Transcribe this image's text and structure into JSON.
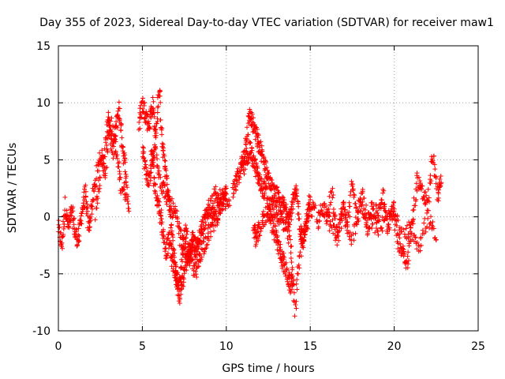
{
  "chart_data": {
    "type": "scatter",
    "title": "Day 355 of 2023, Sidereal Day-to-day VTEC variation (SDTVAR) for receiver maw1",
    "xlabel": "GPS time / hours",
    "ylabel": "SDTVAR / TECUs",
    "xlim": [
      0,
      25
    ],
    "ylim": [
      -10,
      15
    ],
    "x_ticks": [
      0,
      5,
      10,
      15,
      20,
      25
    ],
    "y_ticks": [
      -10,
      -5,
      0,
      5,
      10,
      15
    ],
    "x_tick_labels": [
      "0",
      "5",
      "10",
      "15",
      "20",
      "25"
    ],
    "y_tick_labels": [
      "-10",
      "-5",
      "0",
      "5",
      "10",
      "15"
    ],
    "grid": true,
    "marker": "+",
    "series": [
      {
        "name": "SDTVAR",
        "color": "#ff0000",
        "tracks": [
          {
            "x": [
              0.0,
              0.2,
              0.4,
              0.6,
              0.8,
              1.0,
              1.2,
              1.4,
              1.6,
              1.8,
              2.0,
              2.2,
              2.5,
              2.8,
              3.1,
              3.4,
              3.7,
              4.0
            ],
            "y": [
              -1.0,
              -2.5,
              1.0,
              -1.0,
              0.5,
              -1.5,
              -2.0,
              0.5,
              2.0,
              -1.0,
              1.0,
              3.0,
              5.5,
              4.0,
              8.5,
              6.0,
              3.0,
              2.0
            ]
          },
          {
            "x": [
              2.2,
              2.5,
              2.8,
              3.0,
              3.2,
              3.4,
              3.6,
              3.8,
              4.0,
              4.2
            ],
            "y": [
              0.5,
              4.0,
              6.0,
              9.0,
              5.5,
              7.5,
              9.5,
              6.5,
              4.0,
              0.5
            ]
          },
          {
            "x": [
              4.8,
              5.0,
              5.2,
              5.4,
              5.6,
              5.8,
              6.0,
              6.2,
              6.4,
              6.6,
              6.8,
              7.0,
              7.2,
              7.4,
              7.6,
              7.8,
              8.0,
              8.2,
              8.5,
              8.8,
              9.1,
              9.4,
              9.7,
              10.0
            ],
            "y": [
              8.0,
              10.0,
              9.0,
              8.0,
              10.0,
              7.0,
              11.0,
              6.0,
              4.0,
              1.0,
              -2.0,
              -5.0,
              -7.0,
              -5.5,
              -4.0,
              -3.0,
              -2.0,
              -3.0,
              -1.0,
              0.0,
              1.0,
              2.0,
              1.5,
              2.5
            ]
          },
          {
            "x": [
              5.0,
              5.2,
              5.4,
              5.6,
              5.8,
              6.0,
              6.2,
              6.4,
              6.6,
              6.8,
              7.0,
              7.2,
              7.4,
              7.6,
              7.8,
              8.0,
              8.3,
              8.6,
              9.0,
              9.4,
              9.8,
              10.2
            ],
            "y": [
              6.0,
              4.0,
              3.0,
              5.0,
              2.0,
              1.0,
              -1.0,
              -3.0,
              -2.0,
              -4.0,
              -5.0,
              -6.0,
              -3.0,
              -1.0,
              -4.0,
              -2.0,
              -3.0,
              -1.0,
              1.0,
              0.0,
              1.5,
              1.0
            ]
          },
          {
            "x": [
              5.5,
              5.8,
              6.1,
              6.4,
              6.7,
              7.0,
              7.3,
              7.6,
              7.9,
              8.2,
              8.5,
              8.8,
              9.1,
              9.4,
              9.7,
              10.0
            ],
            "y": [
              5.0,
              6.0,
              3.0,
              2.0,
              1.0,
              0.0,
              -2.0,
              -3.0,
              -4.0,
              -5.0,
              -3.0,
              -2.0,
              -1.0,
              0.0,
              1.0,
              2.0
            ]
          },
          {
            "x": [
              10.4,
              10.6,
              10.8,
              11.0,
              11.2,
              11.4,
              11.6,
              11.8,
              12.0,
              12.2,
              12.4,
              12.6,
              12.8,
              13.0,
              13.2,
              13.4,
              13.6,
              13.8,
              14.0,
              14.2,
              14.4,
              14.6,
              14.8,
              15.0
            ],
            "y": [
              2.0,
              3.0,
              4.0,
              5.0,
              7.0,
              9.0,
              8.0,
              7.0,
              6.0,
              5.0,
              4.0,
              3.0,
              2.0,
              2.0,
              1.0,
              1.0,
              0.5,
              0.0,
              1.5,
              2.0,
              -1.0,
              -2.0,
              0.0,
              1.5
            ]
          },
          {
            "x": [
              11.0,
              11.2,
              11.4,
              11.6,
              11.8,
              12.0,
              12.2,
              12.4,
              12.6,
              12.8,
              13.0,
              13.2,
              13.4,
              13.6,
              13.8,
              14.0
            ],
            "y": [
              4.0,
              5.0,
              6.0,
              5.0,
              4.0,
              3.0,
              2.5,
              2.0,
              0.0,
              -1.0,
              -2.0,
              -3.0,
              -4.0,
              -5.0,
              -6.0,
              -5.5
            ]
          },
          {
            "x": [
              11.6,
              11.8,
              12.0,
              12.3,
              12.6,
              12.9,
              13.2,
              13.5,
              13.8,
              14.1,
              14.4,
              14.7,
              15.0,
              15.3
            ],
            "y": [
              -1.0,
              -2.0,
              -1.0,
              0.0,
              1.0,
              0.5,
              0.0,
              -1.0,
              -2.0,
              -8.0,
              -3.0,
              -1.0,
              0.5,
              1.0
            ]
          },
          {
            "x": [
              15.4,
              15.7,
              16.0,
              16.3,
              16.6,
              16.9,
              17.2,
              17.5,
              17.8,
              18.1,
              18.4,
              18.7,
              19.0,
              19.3,
              19.6,
              19.9,
              20.2,
              20.5,
              20.8,
              21.1,
              21.4,
              21.7,
              22.0,
              22.3,
              22.6,
              22.8
            ],
            "y": [
              -1.0,
              1.0,
              0.0,
              2.0,
              -2.0,
              1.0,
              -1.0,
              3.0,
              0.0,
              2.0,
              -1.0,
              1.0,
              0.0,
              2.0,
              -1.0,
              1.0,
              -2.0,
              -3.0,
              -4.0,
              0.0,
              3.5,
              2.0,
              1.0,
              5.5,
              2.0,
              3.0
            ]
          },
          {
            "x": [
              16.0,
              16.5,
              17.0,
              17.5,
              18.0,
              18.5,
              19.0,
              19.5,
              20.0,
              20.5,
              21.0,
              21.5,
              22.0,
              22.5
            ],
            "y": [
              0.0,
              -1.5,
              0.5,
              -2.0,
              1.0,
              0.0,
              -1.0,
              -0.5,
              0.5,
              -2.0,
              -1.0,
              -2.5,
              0.0,
              -2.0
            ]
          }
        ]
      }
    ]
  }
}
